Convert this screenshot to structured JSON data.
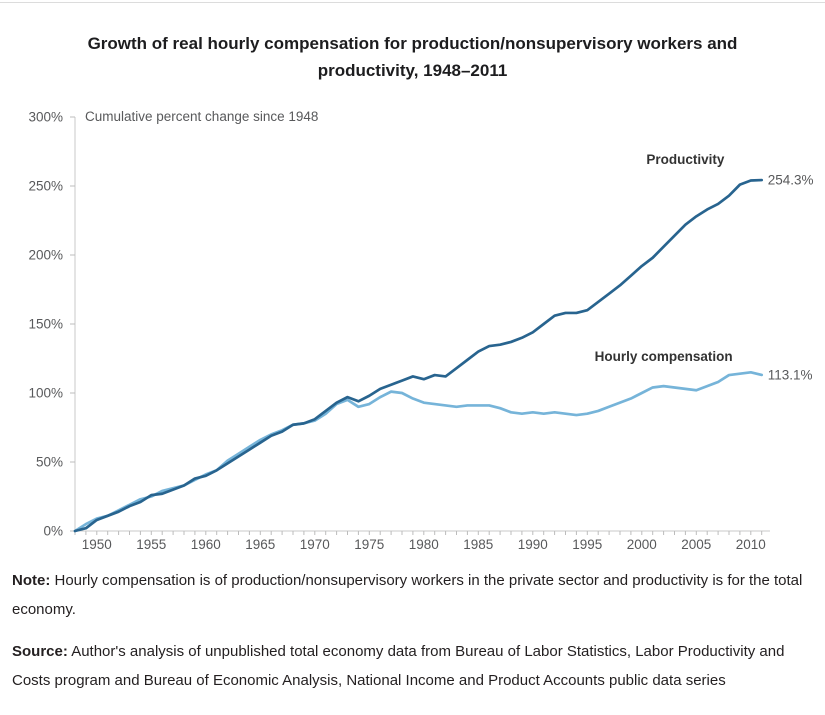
{
  "title": "Growth of real hourly compensation for production/nonsupervisory workers and productivity, 1948–2011",
  "chart_data": {
    "type": "line",
    "subtitle": "Cumulative percent change since 1948",
    "xlabel": "",
    "ylabel": "Cumulative percent change since 1948",
    "xlim": [
      1948,
      2011
    ],
    "ylim": [
      0,
      300
    ],
    "grid": false,
    "legend_position": "inline-annotations",
    "yticks": [
      "0%",
      "50%",
      "100%",
      "150%",
      "200%",
      "250%",
      "300%"
    ],
    "xticks": [
      1950,
      1955,
      1960,
      1965,
      1970,
      1975,
      1980,
      1985,
      1990,
      1995,
      2000,
      2005,
      2010
    ],
    "x": [
      1948,
      1949,
      1950,
      1951,
      1952,
      1953,
      1954,
      1955,
      1956,
      1957,
      1958,
      1959,
      1960,
      1961,
      1962,
      1963,
      1964,
      1965,
      1966,
      1967,
      1968,
      1969,
      1970,
      1971,
      1972,
      1973,
      1974,
      1975,
      1976,
      1977,
      1978,
      1979,
      1980,
      1981,
      1982,
      1983,
      1984,
      1985,
      1986,
      1987,
      1988,
      1989,
      1990,
      1991,
      1992,
      1993,
      1994,
      1995,
      1996,
      1997,
      1998,
      1999,
      2000,
      2001,
      2002,
      2003,
      2004,
      2005,
      2006,
      2007,
      2008,
      2009,
      2010,
      2011
    ],
    "series": [
      {
        "name": "Productivity",
        "color": "#28648f",
        "end_label": "254.3%",
        "values": [
          0,
          2,
          8,
          11,
          14,
          18,
          21,
          26,
          27,
          30,
          33,
          38,
          40,
          44,
          49,
          54,
          59,
          64,
          69,
          72,
          77,
          78,
          81,
          87,
          93,
          97,
          94,
          98,
          103,
          106,
          109,
          112,
          110,
          113,
          112,
          118,
          124,
          130,
          134,
          135,
          137,
          140,
          144,
          150,
          156,
          158,
          158,
          160,
          166,
          172,
          178,
          185,
          192,
          198,
          206,
          214,
          222,
          228,
          233,
          237,
          243,
          251,
          254,
          254.3
        ]
      },
      {
        "name": "Hourly compensation",
        "color": "#76b4d9",
        "end_label": "113.1%",
        "values": [
          0,
          5,
          9,
          11,
          15,
          19,
          23,
          25,
          29,
          31,
          33,
          37,
          41,
          44,
          51,
          56,
          61,
          66,
          70,
          73,
          77,
          78,
          80,
          85,
          92,
          95,
          90,
          92,
          97,
          101,
          100,
          96,
          93,
          92,
          91,
          90,
          91,
          91,
          91,
          89,
          86,
          85,
          86,
          85,
          86,
          85,
          84,
          85,
          87,
          90,
          93,
          96,
          100,
          104,
          105,
          104,
          103,
          102,
          105,
          108,
          113,
          114,
          115,
          113.1
        ]
      }
    ]
  },
  "note": {
    "label": "Note:",
    "text": " Hourly compensation is of production/nonsupervisory workers in the private sector and productivity is for the total economy."
  },
  "source": {
    "label": "Source:",
    "text": " Author's analysis of unpublished total economy data from Bureau of Labor Statistics, Labor Productivity and Costs program and Bureau of Economic Analysis, National Income and Product Accounts public data series"
  }
}
